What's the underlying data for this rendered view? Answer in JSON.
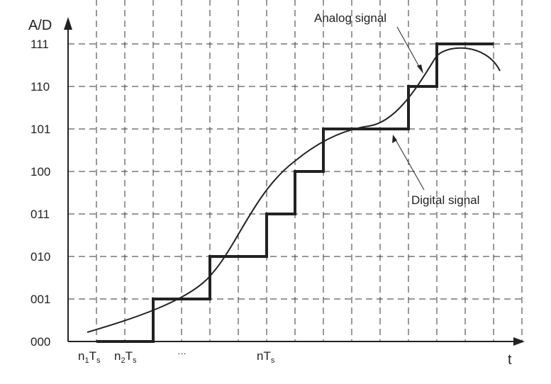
{
  "y_axis_label": "A/D",
  "x_axis_label": "t",
  "y_levels": [
    "000",
    "001",
    "010",
    "011",
    "100",
    "101",
    "110",
    "111"
  ],
  "x_labels": {
    "n1": {
      "base": "n",
      "sub1": "1",
      "mid": "T",
      "sub2": "s"
    },
    "n2": {
      "base": "n",
      "sub1": "2",
      "mid": "T",
      "sub2": "s"
    },
    "ellipsis": "…",
    "n": {
      "base": "nT",
      "sub": "s"
    }
  },
  "annotations": {
    "analog": "Analog signal",
    "digital": "Digital signal"
  },
  "digital_steps": [
    {
      "from": 1,
      "to": 3,
      "level": "000"
    },
    {
      "from": 3,
      "to": 5,
      "level": "001"
    },
    {
      "from": 5,
      "to": 7,
      "level": "010"
    },
    {
      "from": 7,
      "to": 8,
      "level": "011"
    },
    {
      "from": 8,
      "to": 9,
      "level": "100"
    },
    {
      "from": 9,
      "to": 12,
      "level": "101"
    },
    {
      "from": 12,
      "to": 13,
      "level": "110"
    },
    {
      "from": 13,
      "to": 15,
      "level": "111"
    }
  ],
  "colors": {
    "line": "#222222",
    "grid": "#333333",
    "background": "#ffffff"
  }
}
